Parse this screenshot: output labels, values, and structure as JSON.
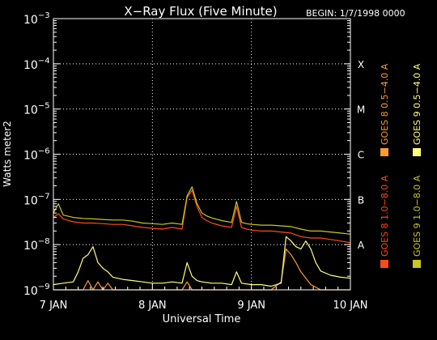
{
  "chart_data": {
    "type": "line",
    "title": "X−Ray Flux (Five Minute)",
    "begin_label": "BEGIN: 1/7/1998 0000",
    "xlabel": "Universal Time",
    "ylabel": "Watts meter2",
    "yscale": "log",
    "ylim": [
      1e-09,
      0.001
    ],
    "xlim": [
      0,
      3
    ],
    "x_unit": "days since 7 JAN 1998 00:00 UT",
    "grid": true,
    "x_ticks": [
      {
        "x": 0,
        "label": "7 JAN"
      },
      {
        "x": 1,
        "label": "8 JAN"
      },
      {
        "x": 2,
        "label": "9 JAN"
      },
      {
        "x": 3,
        "label": "10 JAN"
      }
    ],
    "y_ticks": [
      {
        "value": 1e-09,
        "base": "10",
        "exp": "−9"
      },
      {
        "value": 1e-08,
        "base": "10",
        "exp": "−8"
      },
      {
        "value": 1e-07,
        "base": "10",
        "exp": "−7"
      },
      {
        "value": 1e-06,
        "base": "10",
        "exp": "−6"
      },
      {
        "value": 1e-05,
        "base": "10",
        "exp": "−5"
      },
      {
        "value": 0.0001,
        "base": "10",
        "exp": "−4"
      },
      {
        "value": 0.001,
        "base": "10",
        "exp": "−3"
      }
    ],
    "flare_classes": [
      {
        "label": "A",
        "value": 1e-08
      },
      {
        "label": "B",
        "value": 1e-07
      },
      {
        "label": "C",
        "value": 1e-06
      },
      {
        "label": "M",
        "value": 1e-05
      },
      {
        "label": "X",
        "value": 0.0001
      }
    ],
    "legend_position": "right",
    "series": [
      {
        "name": "GOES 8 1.0−8.0 A",
        "color": "#ff4b1a",
        "x": [
          0,
          0.05,
          0.1,
          0.2,
          0.3,
          0.4,
          0.5,
          0.6,
          0.7,
          0.8,
          0.9,
          1.0,
          1.1,
          1.2,
          1.3,
          1.35,
          1.4,
          1.45,
          1.5,
          1.55,
          1.6,
          1.7,
          1.8,
          1.85,
          1.9,
          1.95,
          2.0,
          2.1,
          2.2,
          2.3,
          2.4,
          2.5,
          2.6,
          2.7,
          2.8,
          2.9,
          3.0
        ],
        "y": [
          4e-08,
          4.8e-08,
          3.7e-08,
          3.2e-08,
          3e-08,
          3e-08,
          2.9e-08,
          2.8e-08,
          2.8e-08,
          2.6e-08,
          2.4e-08,
          2.3e-08,
          2.2e-08,
          2.4e-08,
          2.2e-08,
          1.1e-07,
          1.6e-07,
          7e-08,
          4e-08,
          3.4e-08,
          3e-08,
          2.6e-08,
          2.4e-08,
          7e-08,
          2.4e-08,
          2.2e-08,
          2.1e-08,
          2e-08,
          2e-08,
          1.9e-08,
          1.8e-08,
          1.5e-08,
          1.4e-08,
          1.4e-08,
          1.3e-08,
          1.2e-08,
          1.1e-08
        ]
      },
      {
        "name": "GOES 8 0.5−4.0 A",
        "color": "#ff9a30",
        "x": [
          0,
          0.1,
          0.2,
          0.3,
          0.35,
          0.4,
          0.45,
          0.5,
          0.55,
          0.6,
          0.7,
          0.8,
          0.9,
          1.0,
          1.1,
          1.2,
          1.3,
          1.35,
          1.4,
          1.45,
          1.5,
          1.6,
          1.7,
          1.8,
          1.85,
          1.9,
          2.0,
          2.1,
          2.2,
          2.3,
          2.35,
          2.4,
          2.45,
          2.5,
          2.6,
          2.7,
          2.8,
          2.9,
          3.0
        ],
        "y": [
          1e-09,
          1e-09,
          1e-09,
          1e-09,
          1.6e-09,
          1e-09,
          1.5e-09,
          1e-09,
          1.4e-09,
          1e-09,
          1e-09,
          1e-09,
          1e-09,
          1e-09,
          1e-09,
          1e-09,
          1e-09,
          1.5e-09,
          1e-09,
          1e-09,
          1e-09,
          1e-09,
          1e-09,
          1e-09,
          1e-09,
          1e-09,
          1e-09,
          1e-09,
          1e-09,
          1.5e-09,
          8e-09,
          6e-09,
          4e-09,
          2.5e-09,
          1.3e-09,
          1e-09,
          1e-09,
          1e-09,
          1e-09
        ]
      },
      {
        "name": "GOES 9 1.0−8.0 A",
        "color": "#c8c820",
        "x": [
          0,
          0.05,
          0.1,
          0.2,
          0.3,
          0.4,
          0.5,
          0.6,
          0.7,
          0.8,
          0.9,
          1.0,
          1.1,
          1.2,
          1.3,
          1.35,
          1.4,
          1.45,
          1.5,
          1.55,
          1.6,
          1.7,
          1.8,
          1.85,
          1.9,
          1.95,
          2.0,
          2.1,
          2.2,
          2.3,
          2.4,
          2.5,
          2.6,
          2.7,
          2.8,
          2.9,
          3.0
        ],
        "y": [
          5e-08,
          8e-08,
          4.5e-08,
          4e-08,
          3.8e-08,
          3.7e-08,
          3.6e-08,
          3.5e-08,
          3.5e-08,
          3.3e-08,
          3e-08,
          2.9e-08,
          2.8e-08,
          3e-08,
          2.8e-08,
          1.2e-07,
          1.9e-07,
          8e-08,
          5e-08,
          4.3e-08,
          3.9e-08,
          3.4e-08,
          3.1e-08,
          9e-08,
          3.1e-08,
          2.9e-08,
          2.8e-08,
          2.7e-08,
          2.7e-08,
          2.6e-08,
          2.5e-08,
          2.2e-08,
          2e-08,
          2e-08,
          1.9e-08,
          1.8e-08,
          1.7e-08
        ]
      },
      {
        "name": "GOES 9 0.5−4.0 A",
        "color": "#ffff80",
        "x": [
          0,
          0.1,
          0.2,
          0.25,
          0.3,
          0.35,
          0.4,
          0.45,
          0.5,
          0.55,
          0.6,
          0.7,
          0.8,
          0.9,
          1.0,
          1.1,
          1.2,
          1.3,
          1.35,
          1.4,
          1.45,
          1.5,
          1.6,
          1.7,
          1.8,
          1.85,
          1.9,
          2.0,
          2.1,
          2.2,
          2.3,
          2.35,
          2.4,
          2.45,
          2.5,
          2.55,
          2.6,
          2.65,
          2.7,
          2.8,
          2.9,
          3.0
        ],
        "y": [
          1.3e-09,
          1.4e-09,
          1.5e-09,
          2.5e-09,
          5e-09,
          6e-09,
          9e-09,
          4e-09,
          3e-09,
          2.5e-09,
          1.9e-09,
          1.7e-09,
          1.6e-09,
          1.5e-09,
          1.4e-09,
          1.4e-09,
          1.5e-09,
          1.4e-09,
          4e-09,
          2e-09,
          1.6e-09,
          1.5e-09,
          1.4e-09,
          1.4e-09,
          1.3e-09,
          2.5e-09,
          1.4e-09,
          1.3e-09,
          1.3e-09,
          1.2e-09,
          1.4e-09,
          1.5e-08,
          1.2e-08,
          9e-09,
          8e-09,
          1.2e-08,
          8e-09,
          4e-09,
          2.6e-09,
          2.1e-09,
          1.9e-09,
          1.8e-09
        ]
      }
    ]
  }
}
